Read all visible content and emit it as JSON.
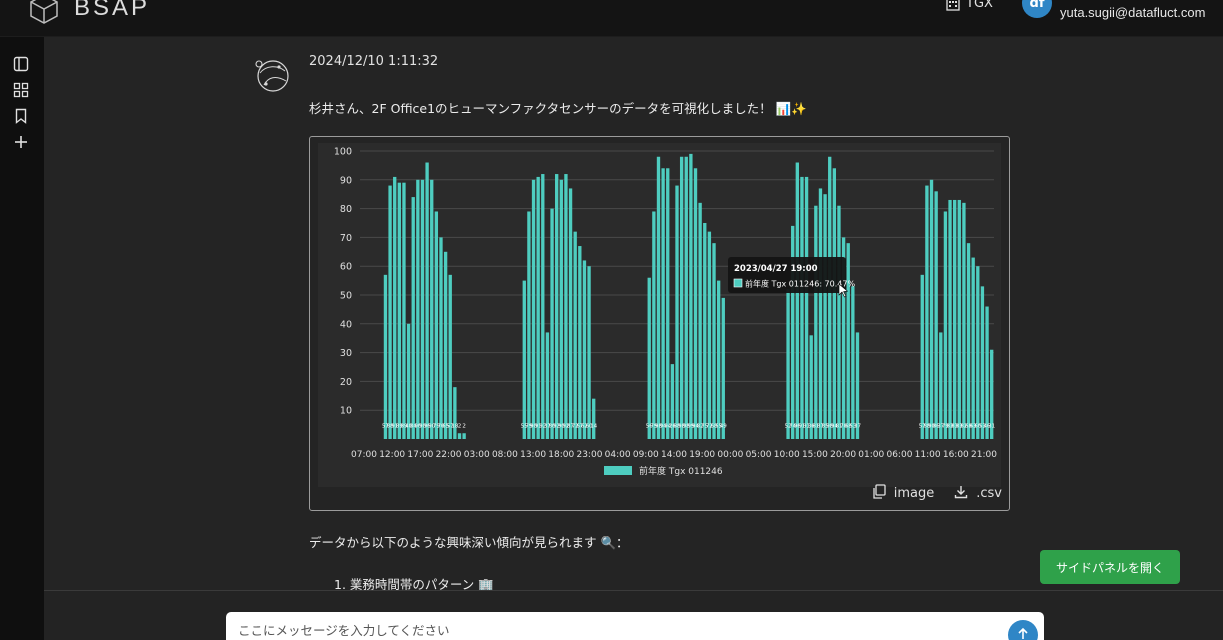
{
  "header": {
    "brand": "BSAP",
    "org_label": "TGX",
    "avatar_initials": "df",
    "user_email": "yuta.sugii@datafluct.com"
  },
  "message": {
    "timestamp": "2024/12/10 1:11:32",
    "intro": "杉井さん、2F Office1のヒューマンファクタセンサーのデータを可視化しました！ 📊✨",
    "trend_text": "データから以下のような興味深い傾向が見られます 🔍：",
    "list_item": "1. 業務時間帯のパターン 🏢"
  },
  "chart_actions": {
    "image_label": "image",
    "csv_label": ".csv"
  },
  "side_panel_button": "サイドパネルを開く",
  "composer": {
    "placeholder": "ここにメッセージを入力してください"
  },
  "colors": {
    "bar": "#4ecdc0",
    "accent_blue": "#2f86c6",
    "button_green": "#2fa14a"
  },
  "chart_data": {
    "type": "bar",
    "ylim": [
      0,
      100
    ],
    "y_ticks": [
      10,
      20,
      30,
      40,
      50,
      60,
      70,
      80,
      90,
      100
    ],
    "x_tick_labels": [
      "07:00",
      "12:00",
      "17:00",
      "22:00",
      "03:00",
      "08:00",
      "13:00",
      "18:00",
      "23:00",
      "04:00",
      "09:00",
      "14:00",
      "19:00",
      "00:00",
      "05:00",
      "10:00",
      "15:00",
      "20:00",
      "01:00",
      "06:00",
      "11:00",
      "16:00",
      "21:00"
    ],
    "series": [
      {
        "name": "前年度 Tgx 011246",
        "values": [
          0,
          0,
          0,
          0,
          0,
          57,
          88,
          91,
          89,
          89,
          40,
          84,
          90,
          90,
          96,
          90,
          79,
          70,
          65,
          57,
          18,
          2,
          2,
          0,
          0,
          0,
          0,
          0,
          0,
          0,
          0,
          0,
          0,
          0,
          0,
          55,
          79,
          90,
          91,
          92,
          37,
          80,
          92,
          90,
          92,
          87,
          72,
          67,
          62,
          60,
          14,
          0,
          0,
          0,
          0,
          0,
          0,
          0,
          0,
          0,
          0,
          0,
          56,
          79,
          98,
          94,
          94,
          26,
          88,
          98,
          98,
          99,
          94,
          82,
          75,
          72,
          68,
          55,
          49,
          0,
          0,
          0,
          0,
          0,
          0,
          0,
          0,
          0,
          0,
          0,
          0,
          0,
          52,
          74,
          96,
          91,
          91,
          36,
          81,
          87,
          85,
          98,
          94,
          81,
          70,
          68,
          53,
          37,
          0,
          0,
          0,
          0,
          0,
          0,
          0,
          0,
          0,
          0,
          0,
          0,
          0,
          57,
          88,
          90,
          86,
          37,
          79,
          83,
          83,
          83,
          82,
          68,
          63,
          60,
          53,
          46,
          31
        ]
      }
    ],
    "legend": {
      "position": "bottom",
      "label": "前年度 Tgx 011246"
    },
    "tooltip": {
      "title": "2023/04/27 19:00",
      "series_label": "前年度 Tgx 011246",
      "value_text": "70.47%"
    },
    "bar_base_labels": [
      "56",
      "55.3",
      "56.3",
      "52",
      "57"
    ],
    "grid": true
  }
}
